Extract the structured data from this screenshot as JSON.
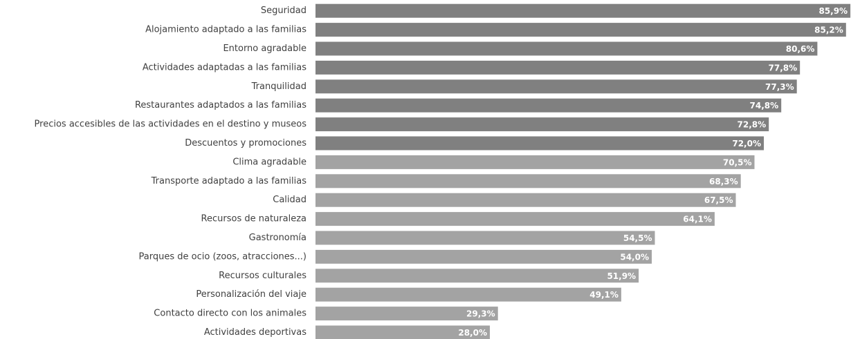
{
  "chart_data": {
    "type": "barh",
    "categories": [
      "Seguridad",
      "Alojamiento adaptado a las familias",
      "Entorno agradable",
      "Actividades adaptadas a las familias",
      "Tranquilidad",
      "Restaurantes adaptados a las familias",
      "Precios accesibles de las actividades en el destino y museos",
      "Descuentos y promociones",
      "Clima agradable",
      "Transporte adaptado a las familias",
      "Calidad",
      "Recursos de naturaleza",
      "Gastronomía",
      "Parques de ocio (zoos, atracciones...)",
      "Recursos culturales",
      "Personalización del viaje",
      "Contacto directo con los animales",
      "Actividades deportivas"
    ],
    "values": [
      85.9,
      85.2,
      80.6,
      77.8,
      77.3,
      74.8,
      72.8,
      72.0,
      70.5,
      68.3,
      67.5,
      64.1,
      54.5,
      54.0,
      51.9,
      49.1,
      29.3,
      28.0
    ],
    "value_labels": [
      "85,9%",
      "85,2%",
      "80,6%",
      "77,8%",
      "77,3%",
      "74,8%",
      "72,8%",
      "72,0%",
      "70,5%",
      "68,3%",
      "67,5%",
      "64,1%",
      "54,5%",
      "54,0%",
      "51,9%",
      "49,1%",
      "29,3%",
      "28,0%"
    ],
    "colors": [
      "#808080",
      "#808080",
      "#808080",
      "#808080",
      "#808080",
      "#808080",
      "#808080",
      "#808080",
      "#a3a3a3",
      "#a3a3a3",
      "#a3a3a3",
      "#a3a3a3",
      "#a3a3a3",
      "#a3a3a3",
      "#a3a3a3",
      "#a3a3a3",
      "#a3a3a3",
      "#a3a3a3"
    ],
    "xlim": [
      0,
      86
    ]
  }
}
